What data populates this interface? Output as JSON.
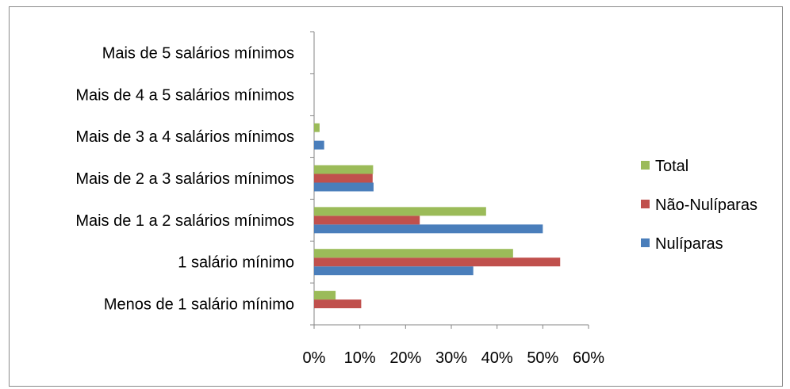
{
  "chart_data": {
    "type": "bar",
    "orientation": "horizontal",
    "categories": [
      "Menos de 1 salário mínimo",
      "1 salário mínimo",
      "Mais de 1 a 2 salários mínimos",
      "Mais de 2 a 3 salários mínimos",
      "Mais de 3 a 4 salários mínimos",
      "Mais de 4 a 5 salários mínimos",
      "Mais de 5 salários mínimos"
    ],
    "series": [
      {
        "name": "Nulíparas",
        "color": "#4a7ebb",
        "values": [
          0,
          34.8,
          50.0,
          13.0,
          2.2,
          0,
          0
        ]
      },
      {
        "name": "Não-Nulíparas",
        "color": "#c0504d",
        "values": [
          10.3,
          53.8,
          23.1,
          12.8,
          0,
          0,
          0
        ]
      },
      {
        "name": "Total",
        "color": "#9bbb59",
        "values": [
          4.7,
          43.5,
          37.6,
          12.9,
          1.2,
          0,
          0
        ]
      }
    ],
    "xlim": [
      0,
      60
    ],
    "xticks": [
      "0%",
      "10%",
      "20%",
      "30%",
      "40%",
      "50%",
      "60%"
    ],
    "title": "",
    "xlabel": "",
    "ylabel": "",
    "grid": false,
    "legend_position": "right",
    "legend_entries": [
      "Total",
      "Não-Nulíparas",
      "Nulíparas"
    ]
  }
}
